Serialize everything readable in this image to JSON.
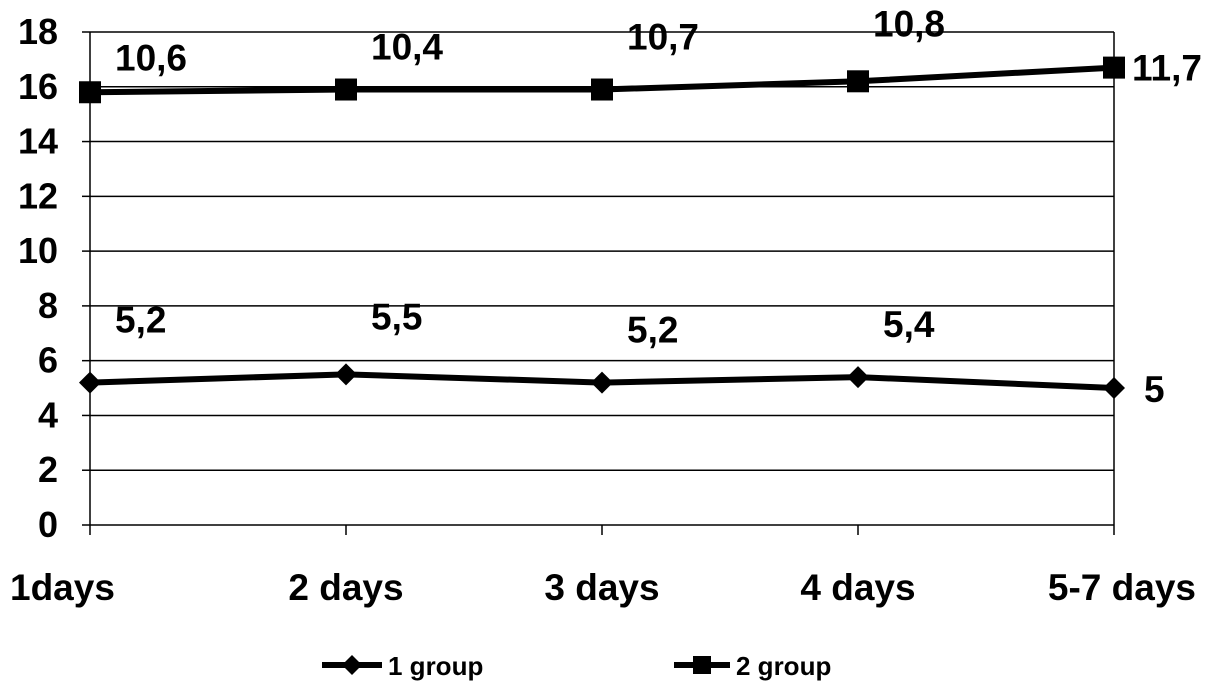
{
  "chart_data": {
    "type": "line",
    "categories": [
      "1days",
      "2 days",
      "3 days",
      "4 days",
      "5-7 days"
    ],
    "series": [
      {
        "name": "1 group",
        "marker": "diamond",
        "values": [
          5.2,
          5.5,
          5.2,
          5.4,
          5.0
        ],
        "labels": [
          "5,2",
          "5,5",
          "5,2",
          "5,4",
          "5"
        ]
      },
      {
        "name": "2 group",
        "marker": "square",
        "values": [
          15.8,
          15.9,
          15.9,
          16.2,
          16.7
        ],
        "labels": [
          "10,6",
          "10,4",
          "10,7",
          "10,8",
          "11,7"
        ]
      }
    ],
    "yticks": [
      "0",
      "2",
      "4",
      "6",
      "8",
      "10",
      "12",
      "14",
      "16",
      "18"
    ],
    "ylim": [
      0,
      18
    ],
    "grid": true,
    "legend_position": "bottom",
    "colors": {
      "line": "#000000",
      "grid": "#000000",
      "background": "#ffffff"
    }
  }
}
